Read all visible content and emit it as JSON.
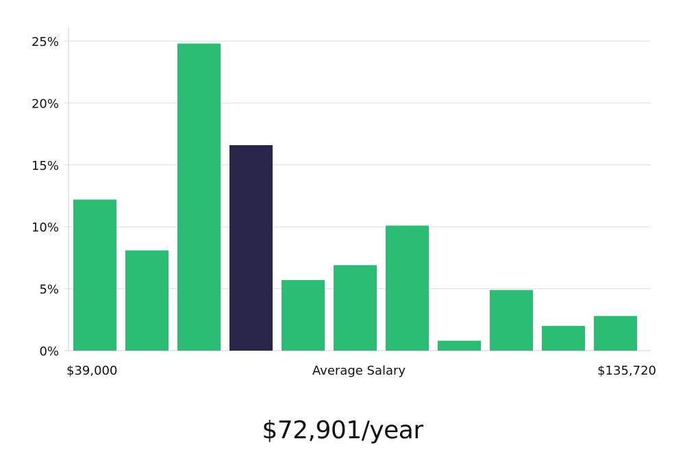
{
  "chart_data": {
    "type": "bar",
    "title": "",
    "xlabel": "Average Salary",
    "ylabel": "",
    "x_min_label": "$39,000",
    "x_max_label": "$135,720",
    "ylim": [
      0,
      26
    ],
    "y_ticks": [
      {
        "value": 0,
        "label": "0%"
      },
      {
        "value": 5,
        "label": "5%"
      },
      {
        "value": 10,
        "label": "10%"
      },
      {
        "value": 15,
        "label": "15%"
      },
      {
        "value": 20,
        "label": "20%"
      },
      {
        "value": 25,
        "label": "25%"
      }
    ],
    "values": [
      12.2,
      8.1,
      24.8,
      16.6,
      5.7,
      6.9,
      10.1,
      0.8,
      4.9,
      2.0,
      2.8
    ],
    "highlight_index": 3,
    "grid": true,
    "colors": {
      "bar": "#2bbd74",
      "highlight": "#29254a",
      "grid": "#dddddd",
      "axis": "#cccccc"
    }
  },
  "salary_display": "$72,901/year"
}
